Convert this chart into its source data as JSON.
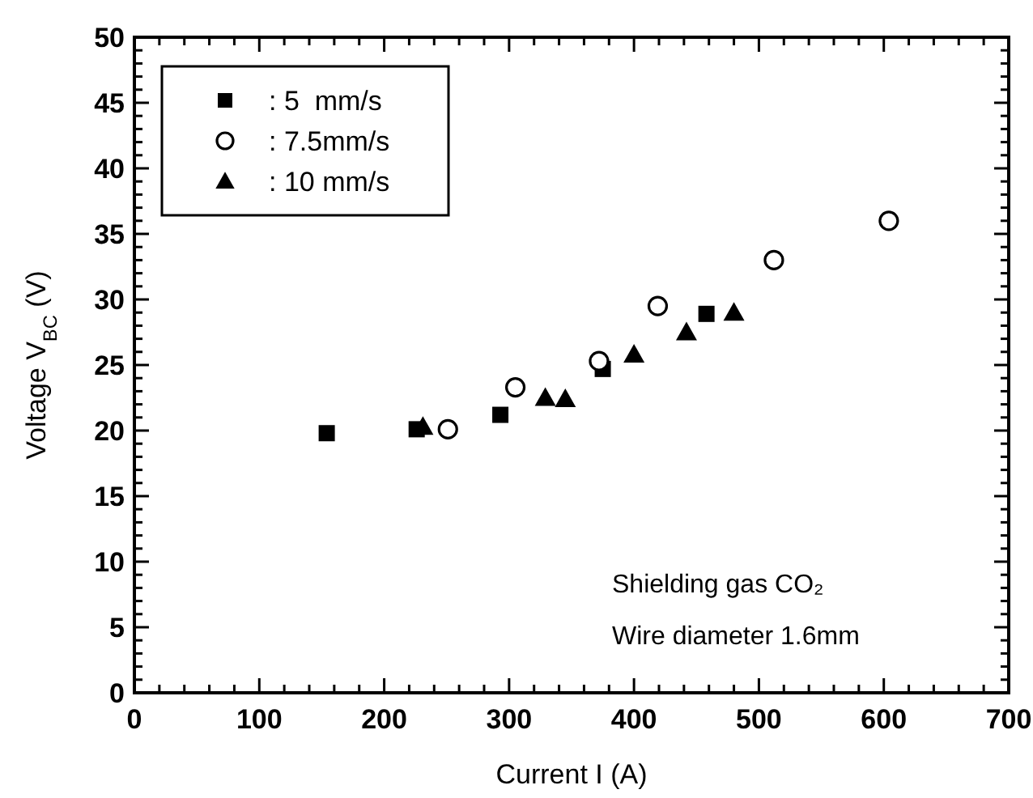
{
  "chart_data": {
    "type": "scatter",
    "xlabel": "Current  I  (A)",
    "ylabel": "Voltage  V$_{BC}$  (V)",
    "xlim": [
      0,
      700
    ],
    "ylim": [
      0,
      50
    ],
    "xticks": [
      0,
      {
        "value": 20,
        "label": null
      },
      {
        "value": 40,
        "label": null
      },
      {
        "value": 60,
        "label": null
      },
      {
        "value": 80,
        "label": null
      },
      100,
      {
        "value": 120,
        "label": null
      },
      {
        "value": 140,
        "label": null
      },
      {
        "value": 160,
        "label": null
      },
      {
        "value": 180,
        "label": null
      },
      200,
      {
        "value": 220,
        "label": null
      },
      {
        "value": 240,
        "label": null
      },
      {
        "value": 260,
        "label": null
      },
      {
        "value": 280,
        "label": null
      },
      300,
      {
        "value": 320,
        "label": null
      },
      {
        "value": 340,
        "label": null
      },
      {
        "value": 360,
        "label": null
      },
      {
        "value": 380,
        "label": null
      },
      400,
      {
        "value": 420,
        "label": null
      },
      {
        "value": 440,
        "label": null
      },
      {
        "value": 460,
        "label": null
      },
      {
        "value": 480,
        "label": null
      },
      500,
      {
        "value": 520,
        "label": null
      },
      {
        "value": 540,
        "label": null
      },
      {
        "value": 560,
        "label": null
      },
      {
        "value": 580,
        "label": null
      },
      600,
      {
        "value": 620,
        "label": null
      },
      {
        "value": 640,
        "label": null
      },
      {
        "value": 660,
        "label": null
      },
      {
        "value": 680,
        "label": null
      },
      700
    ],
    "yticks": [
      0,
      {
        "value": 1,
        "label": null
      },
      {
        "value": 2,
        "label": null
      },
      {
        "value": 3,
        "label": null
      },
      {
        "value": 4,
        "label": null
      },
      5,
      {
        "value": 6,
        "label": null
      },
      {
        "value": 7,
        "label": null
      },
      {
        "value": 8,
        "label": null
      },
      {
        "value": 9,
        "label": null
      },
      10,
      {
        "value": 11,
        "label": null
      },
      {
        "value": 12,
        "label": null
      },
      {
        "value": 13,
        "label": null
      },
      {
        "value": 14,
        "label": null
      },
      15,
      {
        "value": 16,
        "label": null
      },
      {
        "value": 17,
        "label": null
      },
      {
        "value": 18,
        "label": null
      },
      {
        "value": 19,
        "label": null
      },
      20,
      {
        "value": 21,
        "label": null
      },
      {
        "value": 22,
        "label": null
      },
      {
        "value": 23,
        "label": null
      },
      {
        "value": 24,
        "label": null
      },
      25,
      {
        "value": 26,
        "label": null
      },
      {
        "value": 27,
        "label": null
      },
      {
        "value": 28,
        "label": null
      },
      {
        "value": 29,
        "label": null
      },
      30,
      {
        "value": 31,
        "label": null
      },
      {
        "value": 32,
        "label": null
      },
      {
        "value": 33,
        "label": null
      },
      {
        "value": 34,
        "label": null
      },
      35,
      {
        "value": 36,
        "label": null
      },
      {
        "value": 37,
        "label": null
      },
      {
        "value": 38,
        "label": null
      },
      {
        "value": 39,
        "label": null
      },
      40,
      {
        "value": 41,
        "label": null
      },
      {
        "value": 42,
        "label": null
      },
      {
        "value": 43,
        "label": null
      },
      {
        "value": 44,
        "label": null
      },
      45,
      {
        "value": 46,
        "label": null
      },
      {
        "value": 47,
        "label": null
      },
      {
        "value": 48,
        "label": null
      },
      {
        "value": 49,
        "label": null
      },
      50
    ],
    "grid": false,
    "legend": "top left",
    "annotations": [
      "Shielding gas  CO₂",
      "Wire diameter  1.6mm"
    ],
    "series": [
      {
        "name": ": 5  mm/s",
        "color": "#000000",
        "marker": "square",
        "x": [
          154,
          226,
          293,
          375,
          458
        ],
        "values": [
          19.8,
          20.1,
          21.2,
          24.7,
          28.9
        ]
      },
      {
        "name": ": 7.5mm/s",
        "color": "#000000",
        "marker": "circle",
        "x": [
          251,
          305,
          372,
          419,
          512,
          604
        ],
        "values": [
          20.1,
          23.3,
          25.3,
          29.5,
          33.0,
          36.0
        ]
      },
      {
        "name": ": 10 mm/s",
        "color": "#000000",
        "marker": "triangle",
        "x": [
          231,
          329,
          345,
          400,
          442,
          480
        ],
        "values": [
          20.3,
          22.5,
          22.4,
          25.8,
          27.5,
          29.0
        ]
      }
    ]
  }
}
